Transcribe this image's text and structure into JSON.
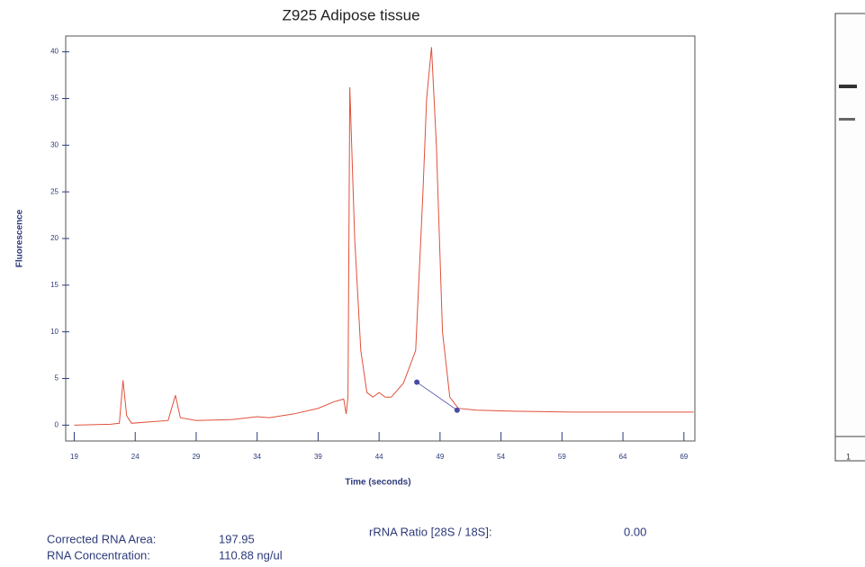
{
  "chart_data": {
    "type": "line",
    "title": "Z925 Adipose tissue",
    "xlabel": "Time (seconds)",
    "ylabel": "Fluorescence",
    "x": [
      19,
      22,
      22.7,
      23.0,
      23.3,
      23.7,
      26.7,
      27.3,
      27.7,
      29,
      32,
      34,
      35,
      37,
      39,
      40.3,
      41.1,
      41.3,
      41.45,
      41.6,
      42.0,
      42.5,
      43.0,
      43.5,
      44,
      44.5,
      45,
      46,
      47,
      47.6,
      47.9,
      48.3,
      48.7,
      49.2,
      49.8,
      50.5,
      52,
      55,
      60,
      65,
      69.8
    ],
    "values": [
      0,
      0.1,
      0.2,
      4.8,
      1.0,
      0.2,
      0.5,
      3.2,
      0.8,
      0.5,
      0.6,
      0.9,
      0.8,
      1.2,
      1.8,
      2.5,
      2.8,
      1.2,
      3.0,
      36.2,
      20,
      8,
      3.5,
      3.0,
      3.5,
      3.0,
      3.0,
      4.5,
      8,
      25,
      35,
      40.5,
      30,
      10,
      3.0,
      1.8,
      1.6,
      1.5,
      1.4,
      1.4,
      1.4
    ],
    "color": "#e0503a",
    "markers": {
      "x": [
        47.1,
        50.4
      ],
      "values": [
        4.6,
        1.6
      ],
      "color": "#4a4aa8"
    },
    "xlim": [
      18.3,
      69.9
    ],
    "ylim": [
      -1.7,
      41.7
    ],
    "xticks": [
      19,
      24,
      29,
      34,
      39,
      44,
      49,
      54,
      59,
      64,
      69
    ],
    "yticks": [
      0,
      5,
      10,
      15,
      20,
      25,
      30,
      35,
      40
    ],
    "annotations": {
      "area_label": "Corrected RNA Area:",
      "area_value": "197.95",
      "conc_label": "RNA Concentration:",
      "conc_value": "110.88 ng/ul",
      "ratio_label": "rRNA Ratio [28S / 18S]:",
      "ratio_value": "0.00"
    },
    "lane_label": "1"
  }
}
